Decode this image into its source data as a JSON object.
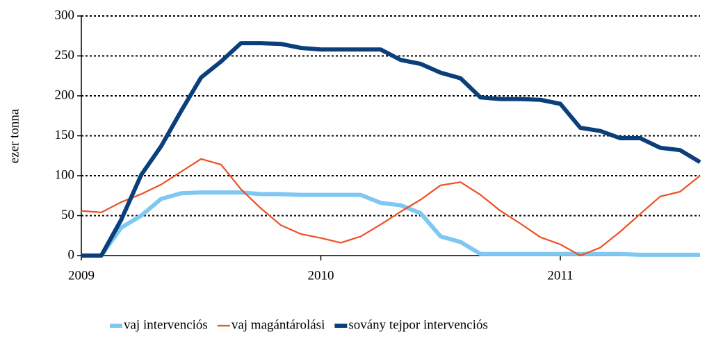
{
  "chart_data": {
    "type": "line",
    "ylabel": "ezer tonna",
    "categories": [
      "2009",
      null,
      null,
      null,
      null,
      null,
      null,
      null,
      null,
      null,
      null,
      null,
      "2010",
      null,
      null,
      null,
      null,
      null,
      null,
      null,
      null,
      null,
      null,
      null,
      "2011",
      null,
      null,
      null,
      null,
      null,
      null,
      null
    ],
    "series": [
      {
        "name": "vaj intervenciós",
        "color": "#7ec8f2",
        "width": 6,
        "values": [
          0,
          0,
          35,
          50,
          71,
          78,
          79,
          79,
          79,
          77,
          77,
          76,
          76,
          76,
          76,
          66,
          63,
          53,
          24,
          17,
          2,
          2,
          2,
          2,
          2,
          2,
          2,
          2,
          1,
          1,
          1,
          1
        ]
      },
      {
        "name": "vaj magántárolási",
        "color": "#f04e23",
        "width": 2.2,
        "values": [
          56,
          54,
          67,
          77,
          89,
          105,
          121,
          114,
          83,
          59,
          38,
          27,
          22,
          16,
          24,
          39,
          55,
          70,
          88,
          92,
          76,
          56,
          40,
          23,
          14,
          0,
          10,
          30,
          52,
          74,
          80,
          100
        ]
      },
      {
        "name": "sovány tejpor intervenciós",
        "color": "#0b3f7a",
        "width": 6,
        "values": [
          0,
          0,
          45,
          101,
          137,
          181,
          223,
          243,
          266,
          266,
          265,
          260,
          258,
          258,
          258,
          258,
          245,
          240,
          229,
          222,
          198,
          196,
          196,
          195,
          190,
          160,
          156,
          147,
          147,
          135,
          132,
          117
        ]
      }
    ],
    "ylim": [
      0,
      300
    ],
    "yticks": [
      0,
      50,
      100,
      150,
      200,
      250,
      300
    ],
    "grid": true,
    "legend": "bottom"
  }
}
